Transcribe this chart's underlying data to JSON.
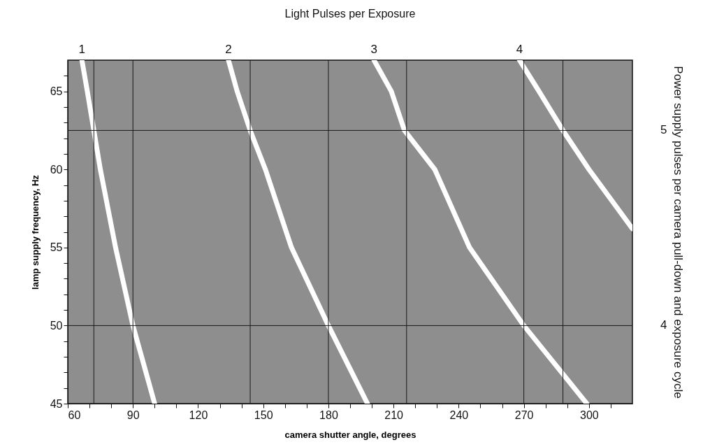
{
  "chart_data": {
    "type": "line",
    "title": "Light Pulses per Exposure",
    "xlabel": "camera shutter angle, degrees",
    "ylabel": "lamp supply frequency, Hz",
    "y2label": "Power supply pulses per camera pull-down and exposure cycle",
    "xlim": [
      60,
      320
    ],
    "ylim": [
      45,
      67
    ],
    "xticks": [
      60,
      {
        "value": 70,
        "label": null
      },
      {
        "value": 80,
        "label": null
      },
      90,
      {
        "value": 100,
        "label": null
      },
      {
        "value": 110,
        "label": null
      },
      120,
      {
        "value": 130,
        "label": null
      },
      {
        "value": 140,
        "label": null
      },
      150,
      {
        "value": 160,
        "label": null
      },
      {
        "value": 170,
        "label": null
      },
      180,
      {
        "value": 190,
        "label": null
      },
      {
        "value": 200,
        "label": null
      },
      210,
      {
        "value": 220,
        "label": null
      },
      {
        "value": 230,
        "label": null
      },
      240,
      {
        "value": 250,
        "label": null
      },
      {
        "value": 260,
        "label": null
      },
      270,
      {
        "value": 280,
        "label": null
      },
      {
        "value": 290,
        "label": null
      },
      300,
      {
        "value": 310,
        "label": null
      }
    ],
    "yticks": [
      45,
      {
        "value": 46,
        "label": null
      },
      {
        "value": 47,
        "label": null
      },
      {
        "value": 48,
        "label": null
      },
      {
        "value": 49,
        "label": null
      },
      50,
      {
        "value": 51,
        "label": null
      },
      {
        "value": 52,
        "label": null
      },
      {
        "value": 53,
        "label": null
      },
      {
        "value": 54,
        "label": null
      },
      55,
      {
        "value": 56,
        "label": null
      },
      {
        "value": 57,
        "label": null
      },
      {
        "value": 58,
        "label": null
      },
      {
        "value": 59,
        "label": null
      },
      60,
      {
        "value": 61,
        "label": null
      },
      {
        "value": 62,
        "label": null
      },
      {
        "value": 63,
        "label": null
      },
      {
        "value": 64,
        "label": null
      },
      65,
      {
        "value": 66,
        "label": null
      }
    ],
    "annotations": [
      {
        "text": "1",
        "x": 66.5,
        "y": 67
      },
      {
        "text": "2",
        "x": 134,
        "y": 67
      },
      {
        "text": "3",
        "x": 201,
        "y": 67
      },
      {
        "text": "4",
        "x": 268,
        "y": 67
      },
      {
        "text": "5",
        "x": 320,
        "y": 62.5
      },
      {
        "text": "4",
        "x": 320,
        "y": 50
      }
    ],
    "series": [
      {
        "color": "#ffffff",
        "x": [
          66.5,
          69,
          72,
          75,
          82,
          90,
          100
        ],
        "values": [
          67,
          65,
          62.5,
          60,
          55,
          50,
          45
        ]
      },
      {
        "color": "#ffffff",
        "x": [
          134,
          138,
          144,
          151,
          163,
          180,
          198
        ],
        "values": [
          67,
          65,
          62.5,
          60,
          55,
          50,
          45
        ]
      },
      {
        "color": "#ffffff",
        "x": [
          201,
          209,
          215,
          229,
          245,
          270,
          299
        ],
        "values": [
          67,
          65,
          62.5,
          60,
          55,
          50,
          45
        ]
      },
      {
        "color": "#ffffff",
        "x": [
          268,
          277,
          288,
          300,
          320
        ],
        "values": [
          67,
          65,
          62.5,
          60,
          56.2
        ]
      }
    ],
    "ref_lines": [
      {
        "axis": "x",
        "value": 72
      },
      {
        "axis": "x",
        "value": 90
      },
      {
        "axis": "x",
        "value": 144
      },
      {
        "axis": "x",
        "value": 180
      },
      {
        "axis": "x",
        "value": 216
      },
      {
        "axis": "x",
        "value": 270
      },
      {
        "axis": "x",
        "value": 288
      },
      {
        "axis": "y",
        "value": 62.5
      },
      {
        "axis": "y",
        "value": 50
      }
    ],
    "grid": false,
    "legend": false
  }
}
